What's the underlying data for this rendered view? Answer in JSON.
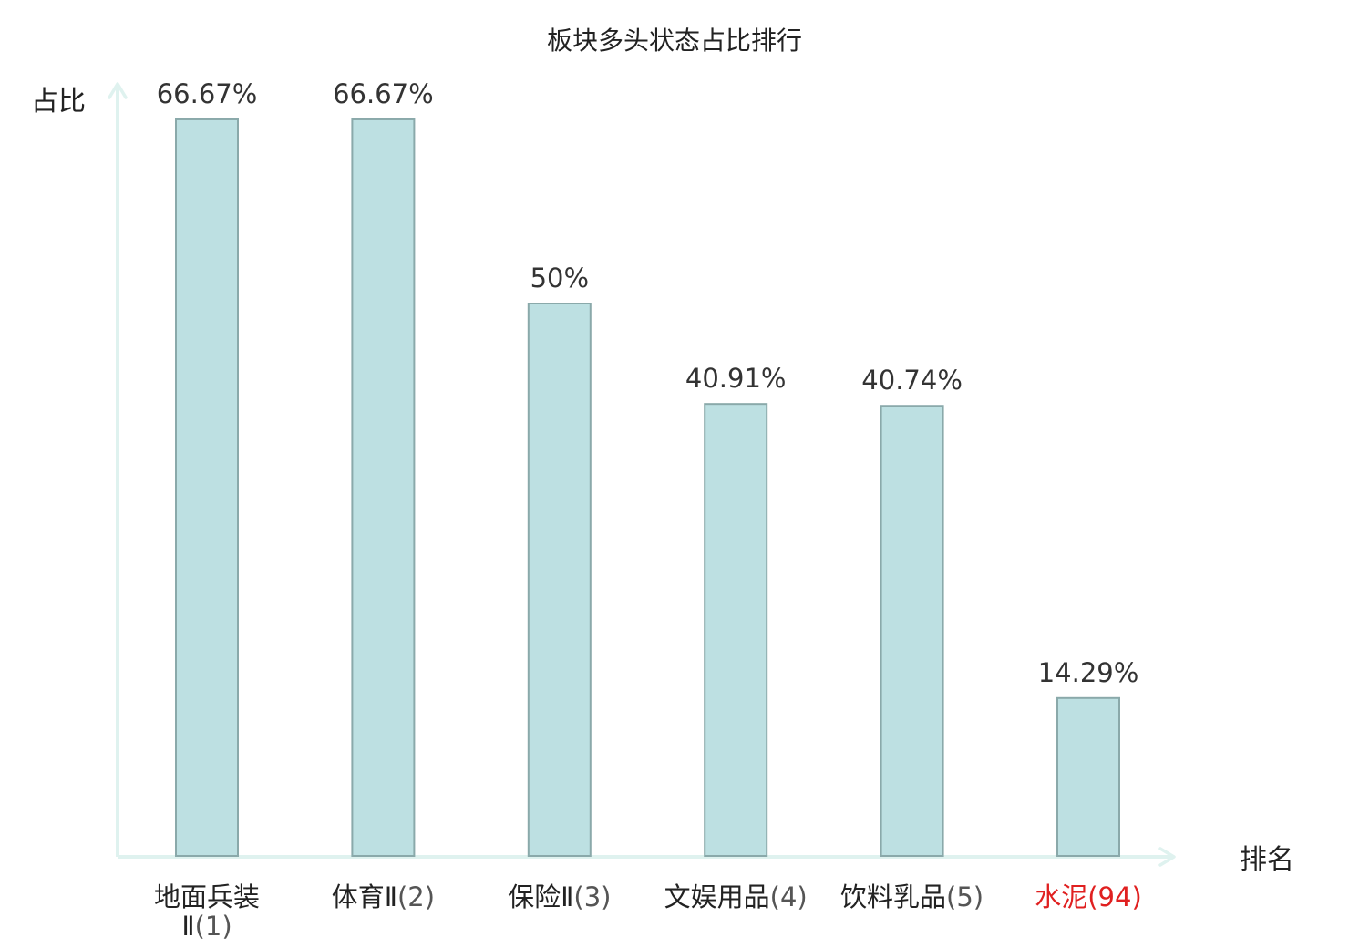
{
  "chart_data": {
    "type": "bar",
    "title": "板块多头状态占比排行",
    "ylabel": "占比",
    "xlabel": "排名",
    "ylim": [
      0,
      70
    ],
    "grid": false,
    "legend": "none",
    "categories": [
      "地面兵装Ⅱ(1)",
      "体育Ⅱ(2)",
      "保险Ⅱ(3)",
      "文娱用品(4)",
      "饮料乳品(5)",
      "水泥(94)"
    ],
    "category_parts": [
      {
        "name": "地面兵装Ⅱ",
        "rank": "(1)"
      },
      {
        "name": "体育Ⅱ",
        "rank": "(2)"
      },
      {
        "name": "保险Ⅱ",
        "rank": "(3)"
      },
      {
        "name": "文娱用品",
        "rank": "(4)"
      },
      {
        "name": "饮料乳品",
        "rank": "(5)"
      },
      {
        "name": "水泥",
        "rank": "(94)"
      }
    ],
    "values": [
      66.67,
      66.67,
      50,
      40.91,
      40.74,
      14.29
    ],
    "value_labels": [
      "66.67%",
      "66.67%",
      "50%",
      "40.91%",
      "40.74%",
      "14.29%"
    ],
    "highlight_index": 5
  },
  "colors": {
    "bar_fill": "#bde0e2",
    "bar_stroke": "#8aa9aa",
    "axis": "#dff2ef",
    "text": "#222222",
    "highlight": "#e02020"
  }
}
